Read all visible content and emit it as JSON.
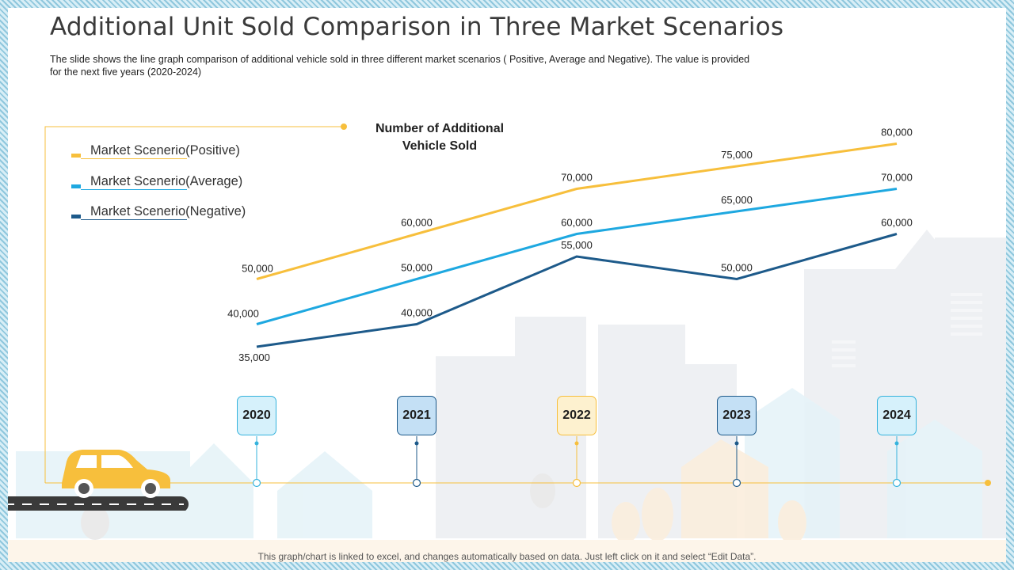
{
  "slide": {
    "title": "Additional Unit Sold Comparison in Three Market Scenarios",
    "subtitle": "The slide shows the line graph comparison of additional vehicle sold in three different market scenarios ( Positive, Average and Negative). The value is provided for the next five years (2020-2024)",
    "footer_note": "This graph/chart is linked to excel, and changes automatically based on data. Just left click on it and select “Edit Data”."
  },
  "legend": [
    {
      "label": "Market Scenerio(Positive)",
      "color": "#f7bf3c"
    },
    {
      "label": "Market Scenerio(Average)",
      "color": "#1ea8e0"
    },
    {
      "label": "Market Scenerio(Negative)",
      "color": "#1d5a8a"
    }
  ],
  "chart_data": {
    "type": "line",
    "title": "Number of Additional Vehicle Sold",
    "x": [
      "2020",
      "2021",
      "2022",
      "2023",
      "2024"
    ],
    "series": [
      {
        "name": "Market Scenerio(Positive)",
        "color": "#f7bf3c",
        "values": [
          50000,
          60000,
          70000,
          75000,
          80000
        ],
        "labels": [
          "50,000",
          "60,000",
          "70,000",
          "75,000",
          "80,000"
        ]
      },
      {
        "name": "Market Scenerio(Average)",
        "color": "#1ea8e0",
        "values": [
          40000,
          50000,
          60000,
          65000,
          70000
        ],
        "labels": [
          "40,000",
          "50,000",
          "60,000",
          "65,000",
          "70,000"
        ]
      },
      {
        "name": "Market Scenerio(Negative)",
        "color": "#1d5a8a",
        "values": [
          35000,
          40000,
          55000,
          50000,
          60000
        ],
        "labels": [
          "35,000",
          "40,000",
          "55,000",
          "50,000",
          "60,000"
        ]
      }
    ]
  },
  "timeline": {
    "years": [
      {
        "label": "2020",
        "fill": "#d6f1fb",
        "border": "#35b3dd",
        "dot": "#35b3dd"
      },
      {
        "label": "2021",
        "fill": "#c4e0f5",
        "border": "#1d5a8a",
        "dot": "#1d5a8a"
      },
      {
        "label": "2022",
        "fill": "#fdf1cf",
        "border": "#f7bf3c",
        "dot": "#f7bf3c"
      },
      {
        "label": "2023",
        "fill": "#c4e0f5",
        "border": "#1d5a8a",
        "dot": "#1d5a8a"
      },
      {
        "label": "2024",
        "fill": "#d6f1fb",
        "border": "#35b3dd",
        "dot": "#35b3dd"
      }
    ],
    "line_color": "#f7bf3c"
  }
}
